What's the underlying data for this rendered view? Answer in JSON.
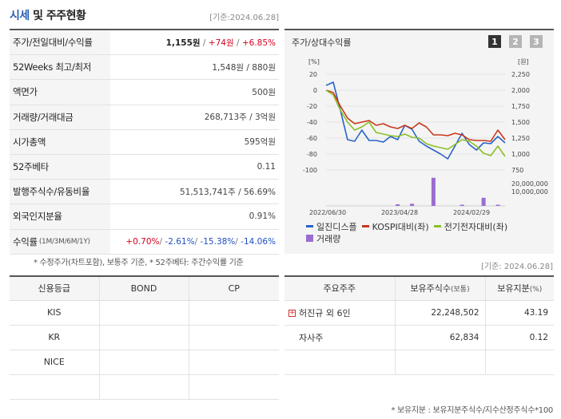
{
  "header": {
    "title_part1": "시세",
    "title_part2": "및 주주현황",
    "date": "[기준:2024.06.28]"
  },
  "summary": {
    "rows": [
      {
        "label": "주가/전일대비/수익률",
        "price": "1,155원",
        "change": "+74원",
        "pct": "+6.85%"
      },
      {
        "label": "52Weeks 최고/최저",
        "value": "1,548원 / 880원"
      },
      {
        "label": "액면가",
        "value": "500원"
      },
      {
        "label": "거래량/거래대금",
        "value": "268,713주 / 3억원"
      },
      {
        "label": "시가총액",
        "value": "595억원"
      },
      {
        "label": "52주베타",
        "value": "0.11"
      },
      {
        "label": "발행주식수/유동비율",
        "value": "51,513,741주 / 56.69%"
      },
      {
        "label": "외국인지분율",
        "value": "0.91%"
      },
      {
        "label": "수익률",
        "label_sub": "(1M/3M/6M/1Y)",
        "r1": "+0.70%",
        "r2": "-2.61%",
        "r3": "-15.38%",
        "r4": "-14.06%"
      }
    ],
    "footnote": "* 수정주가(차트포함), 보통주 기준, * 52주베타: 주간수익률 기준"
  },
  "chart_panel": {
    "title": "주가/상대수익률",
    "buttons": [
      "1",
      "2",
      "3"
    ],
    "date_below": "[기준: 2024.06.28]"
  },
  "chart_data": {
    "type": "line",
    "left_axis_label": "[%]",
    "right_axis_label": "[원]",
    "left_ticks": [
      20,
      0,
      -20,
      -40,
      -60,
      -80,
      -100
    ],
    "right_ticks": [
      "2,250",
      "2,000",
      "1,750",
      "1,500",
      "1,250",
      "1,000",
      "750"
    ],
    "volume_ticks": [
      "20,000,000",
      "10,000,000"
    ],
    "x_ticks": [
      "2022/06/30",
      "2023/04/28",
      "2024/02/29"
    ],
    "series": [
      {
        "name": "일진디스플",
        "color": "#2a63c8",
        "values": [
          6,
          10,
          -25,
          -62,
          -64,
          -50,
          -63,
          -63,
          -65,
          -58,
          -62,
          -44,
          -49,
          -64,
          -70,
          -75,
          -80,
          -86,
          -70,
          -54,
          -68,
          -75,
          -66,
          -67,
          -58,
          -66
        ]
      },
      {
        "name": "KOSPI대비(좌)",
        "color": "#c8371a",
        "values": [
          0,
          -3,
          -20,
          -35,
          -42,
          -40,
          -38,
          -44,
          -42,
          -46,
          -48,
          -44,
          -48,
          -41,
          -46,
          -56,
          -56,
          -57,
          -54,
          -56,
          -62,
          -63,
          -63,
          -64,
          -50,
          -62
        ]
      },
      {
        "name": "전기전자대비(좌)",
        "color": "#8cbf26",
        "values": [
          0,
          -6,
          -25,
          -40,
          -50,
          -46,
          -40,
          -53,
          -55,
          -57,
          -58,
          -55,
          -59,
          -60,
          -67,
          -70,
          -72,
          -74,
          -68,
          -62,
          -64,
          -70,
          -79,
          -82,
          -70,
          -83
        ]
      },
      {
        "name": "거래량",
        "color": "#9b6dd0",
        "values": []
      }
    ],
    "volume_bars": [
      {
        "index": 10,
        "value": 1500000
      },
      {
        "index": 12,
        "value": 2000000
      },
      {
        "index": 15,
        "value": 26000000
      },
      {
        "index": 19,
        "value": 900000
      },
      {
        "index": 22,
        "value": 7500000
      },
      {
        "index": 24,
        "value": 1000000
      }
    ],
    "ylim_left": [
      -100,
      20
    ]
  },
  "credit": {
    "headers": [
      "신용등급",
      "BOND",
      "CP"
    ],
    "rows": [
      [
        "KIS",
        "",
        ""
      ],
      [
        "KR",
        "",
        ""
      ],
      [
        "NICE",
        "",
        ""
      ],
      [
        "",
        "",
        ""
      ]
    ]
  },
  "holders": {
    "headers": [
      "주요주주",
      "보유주식수",
      "(보통)",
      "보유지분",
      "(%)"
    ],
    "rows": [
      {
        "name": "허진규 외 6인",
        "shares": "22,248,502",
        "pct": "43.19",
        "expand": true
      },
      {
        "name": "자사주",
        "shares": "62,834",
        "pct": "0.12",
        "expand": false
      },
      {
        "name": "",
        "shares": "",
        "pct": "",
        "expand": false
      }
    ],
    "footnote": "* 보유지분 : 보유지분주식수/지수산정주식수*100"
  }
}
